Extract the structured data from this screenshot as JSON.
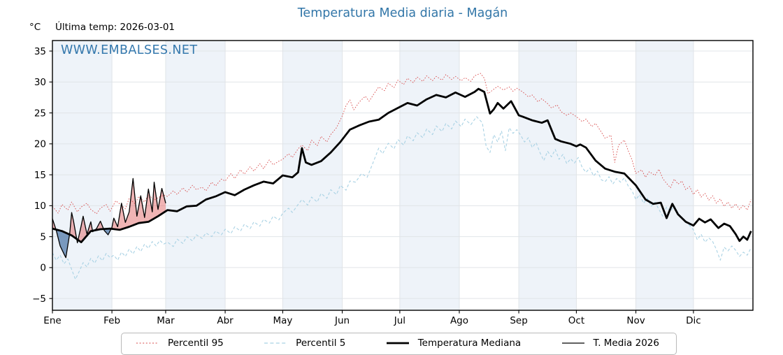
{
  "title": "Temperatura Media diaria - Magán",
  "y_axis_unit": "°C",
  "subtitle": "Última temp: 2026-03-01",
  "watermark": "WWW.EMBALSES.NET",
  "colors": {
    "title_blue": "#3276a8",
    "watermark_blue": "#3478ad",
    "percentile95_red": "#d84a4a",
    "percentile5_blue": "#a9d2e4",
    "median_black": "#000000",
    "band_tint": "#eef3f9",
    "grid_gray": "#e0e4e8"
  },
  "legend": {
    "items": [
      {
        "label": "Percentil 95",
        "color": "#d84a4a",
        "dash": "2 2.6",
        "width": 1
      },
      {
        "label": "Percentil 5",
        "color": "#a9d2e4",
        "dash": "5 3.4",
        "width": 1.2
      },
      {
        "label": "Temperatura Mediana",
        "color": "#000000",
        "dash": "",
        "width": 2.8
      },
      {
        "label": "T. Media 2026",
        "color": "#000000",
        "dash": "",
        "width": 1.2
      }
    ]
  },
  "chart_data": {
    "type": "line",
    "title": "Temperatura Media diaria - Magán",
    "xlabel": "",
    "ylabel": "°C",
    "xlim": [
      0,
      365
    ],
    "ylim": [
      -6.9,
      36.7
    ],
    "yticks": [
      -5,
      0,
      5,
      10,
      15,
      20,
      25,
      30,
      35
    ],
    "x_tick_labels": [
      "Ene",
      "Feb",
      "Mar",
      "Abr",
      "May",
      "Jun",
      "Jul",
      "Ago",
      "Sep",
      "Oct",
      "Nov",
      "Dic"
    ],
    "month_start_days": [
      0,
      31,
      59,
      90,
      120,
      151,
      181,
      212,
      243,
      273,
      304,
      334
    ],
    "grid": true,
    "band_color": "#eef3f9",
    "grid_color": "#e0e4e8",
    "legend_position": "bottom",
    "fill": {
      "upper": "T. Media 2026",
      "lower": "Temperatura Mediana",
      "above_color": "rgba(226,106,106,0.5)",
      "below_color": "rgba(82,123,170,0.75)"
    },
    "series": [
      {
        "name": "Percentil 95",
        "color": "#d84a4a",
        "dash": "1.6 2.2",
        "width": 0.9,
        "x": [
          0,
          3,
          5,
          8,
          10,
          13,
          15,
          18,
          20,
          23,
          25,
          28,
          30,
          33,
          35,
          38,
          40,
          43,
          45,
          48,
          50,
          53,
          55,
          58,
          60,
          63,
          65,
          68,
          70,
          73,
          75,
          78,
          80,
          83,
          85,
          88,
          90,
          93,
          95,
          98,
          100,
          103,
          105,
          108,
          110,
          113,
          115,
          118,
          120,
          123,
          125,
          128,
          130,
          133,
          135,
          138,
          140,
          143,
          145,
          148,
          151,
          153,
          155,
          157,
          160,
          163,
          165,
          168,
          170,
          173,
          175,
          178,
          180,
          183,
          185,
          188,
          190,
          193,
          195,
          198,
          200,
          203,
          205,
          208,
          210,
          213,
          215,
          218,
          220,
          223,
          225,
          227,
          229,
          232,
          235,
          238,
          240,
          242,
          245,
          248,
          250,
          253,
          255,
          258,
          260,
          263,
          265,
          268,
          270,
          273,
          276,
          278,
          281,
          283,
          286,
          288,
          291,
          293,
          295,
          298,
          300,
          302,
          304,
          307,
          309,
          311,
          314,
          316,
          318,
          320,
          322,
          324,
          326,
          328,
          330,
          332,
          334,
          336,
          338,
          340,
          342,
          344,
          346,
          348,
          350,
          352,
          354,
          356,
          358,
          360,
          362,
          364
        ],
        "y": [
          9.9,
          8.8,
          10.2,
          9.3,
          10.6,
          9.0,
          9.8,
          10.4,
          9.4,
          8.7,
          9.6,
          10.2,
          9.1,
          10.8,
          10.3,
          9.5,
          11.2,
          10.3,
          11.5,
          10.6,
          11.8,
          10.9,
          11.3,
          11.7,
          11.5,
          12.4,
          11.8,
          12.9,
          12.2,
          13.3,
          12.6,
          13.0,
          12.4,
          13.8,
          13.2,
          14.3,
          14.0,
          15.2,
          14.4,
          15.8,
          15.1,
          16.3,
          15.6,
          16.8,
          16.0,
          17.4,
          16.6,
          17.2,
          17.5,
          18.4,
          17.8,
          19.2,
          19.8,
          18.9,
          20.6,
          19.7,
          21.2,
          20.3,
          21.5,
          22.6,
          24.5,
          26.2,
          27.1,
          25.5,
          26.8,
          27.7,
          26.9,
          28.3,
          29.2,
          28.6,
          29.8,
          29.1,
          30.3,
          29.6,
          30.6,
          29.9,
          30.8,
          30.1,
          31.0,
          30.2,
          30.9,
          30.3,
          31.2,
          30.4,
          30.9,
          30.2,
          30.7,
          30.1,
          31.0,
          31.4,
          30.6,
          28.1,
          28.6,
          29.3,
          28.7,
          29.2,
          28.5,
          29.0,
          28.4,
          27.6,
          27.9,
          26.8,
          27.3,
          26.5,
          25.8,
          26.3,
          25.2,
          24.6,
          25.0,
          24.4,
          23.6,
          24.0,
          22.8,
          23.3,
          21.9,
          20.9,
          21.4,
          17.0,
          19.8,
          20.6,
          18.9,
          17.4,
          15.2,
          15.8,
          14.6,
          15.5,
          14.9,
          15.9,
          14.4,
          13.6,
          12.9,
          14.3,
          13.5,
          14.0,
          12.6,
          13.1,
          11.8,
          12.6,
          11.4,
          12.0,
          10.9,
          11.6,
          10.4,
          11.1,
          9.9,
          10.6,
          9.6,
          10.3,
          9.4,
          10.1,
          9.3,
          11.0
        ]
      },
      {
        "name": "Percentil 5",
        "color": "#a9d2e4",
        "dash": "4 3",
        "width": 1.1,
        "x": [
          0,
          2,
          4,
          6,
          8,
          10,
          12,
          14,
          16,
          18,
          20,
          22,
          24,
          26,
          28,
          30,
          32,
          34,
          36,
          38,
          40,
          42,
          44,
          46,
          48,
          50,
          52,
          54,
          56,
          58,
          60,
          63,
          65,
          68,
          70,
          73,
          75,
          78,
          80,
          83,
          85,
          88,
          90,
          93,
          95,
          98,
          100,
          103,
          105,
          108,
          110,
          113,
          115,
          118,
          120,
          123,
          125,
          128,
          130,
          133,
          135,
          138,
          140,
          143,
          145,
          148,
          150,
          153,
          155,
          158,
          161,
          164,
          167,
          170,
          172,
          175,
          178,
          180,
          183,
          185,
          188,
          190,
          193,
          195,
          198,
          200,
          203,
          205,
          208,
          210,
          213,
          215,
          218,
          221,
          224,
          226,
          228,
          230,
          232,
          234,
          236,
          238,
          240,
          242,
          244,
          246,
          248,
          250,
          252,
          254,
          256,
          258,
          260,
          262,
          264,
          266,
          268,
          270,
          272,
          274,
          276,
          278,
          280,
          282,
          284,
          286,
          288,
          290,
          292,
          294,
          296,
          298,
          300,
          302,
          304,
          306,
          308,
          310,
          312,
          314,
          316,
          318,
          320,
          322,
          324,
          326,
          328,
          330,
          332,
          334,
          336,
          338,
          340,
          342,
          344,
          346,
          348,
          350,
          352,
          354,
          356,
          358,
          360,
          362,
          364
        ],
        "y": [
          2.4,
          1.2,
          2.0,
          0.6,
          1.4,
          -0.3,
          -1.9,
          -0.6,
          0.8,
          0.1,
          1.5,
          0.7,
          1.9,
          1.1,
          2.3,
          1.6,
          2.0,
          1.2,
          2.5,
          1.8,
          3.0,
          2.2,
          3.4,
          2.6,
          3.8,
          3.1,
          4.2,
          3.5,
          4.4,
          3.8,
          4.1,
          3.4,
          4.6,
          3.9,
          5.0,
          4.3,
          5.3,
          4.7,
          5.6,
          5.0,
          5.9,
          5.3,
          6.2,
          5.5,
          6.6,
          5.9,
          7.0,
          6.3,
          7.4,
          6.7,
          7.8,
          7.2,
          8.3,
          7.7,
          8.8,
          9.6,
          8.9,
          10.2,
          11.0,
          10.1,
          11.4,
          10.6,
          12.0,
          11.2,
          12.6,
          11.8,
          13.3,
          12.5,
          14.0,
          13.8,
          15.2,
          14.6,
          16.9,
          19.3,
          18.4,
          20.1,
          19.2,
          20.7,
          19.8,
          21.3,
          20.5,
          21.8,
          21.0,
          22.4,
          21.5,
          22.9,
          22.0,
          23.3,
          22.4,
          23.7,
          22.8,
          24.0,
          23.1,
          24.4,
          23.4,
          19.6,
          18.6,
          21.5,
          20.3,
          22.1,
          18.9,
          22.6,
          21.7,
          22.3,
          21.4,
          20.3,
          21.0,
          19.4,
          20.2,
          18.6,
          17.3,
          18.8,
          17.9,
          19.1,
          17.5,
          18.3,
          16.8,
          17.6,
          16.9,
          17.8,
          16.2,
          15.4,
          16.1,
          14.8,
          15.6,
          14.2,
          13.9,
          14.7,
          13.5,
          14.4,
          13.8,
          14.5,
          13.2,
          12.4,
          11.0,
          11.8,
          10.4,
          11.2,
          9.9,
          10.6,
          9.4,
          8.3,
          9.8,
          9.1,
          10.0,
          8.8,
          8.1,
          7.4,
          6.8,
          6.1,
          4.5,
          5.4,
          4.1,
          4.8,
          4.2,
          2.9,
          1.2,
          3.3,
          2.7,
          3.5,
          2.8,
          1.8,
          2.5,
          2.0,
          3.2
        ]
      },
      {
        "name": "T. Media 2026",
        "color": "#000000",
        "dash": "",
        "width": 1.3,
        "x": [
          0,
          2,
          4,
          6,
          7,
          9,
          10,
          11,
          13,
          15,
          16,
          18,
          20,
          21,
          23,
          25,
          27,
          29,
          31,
          32,
          34,
          36,
          38,
          40,
          42,
          44,
          46,
          48,
          50,
          52,
          53,
          55,
          57,
          59
        ],
        "y": [
          7.9,
          6.0,
          3.5,
          2.2,
          1.6,
          5.5,
          8.9,
          7.5,
          4.0,
          6.8,
          8.3,
          5.4,
          7.4,
          5.8,
          6.3,
          7.5,
          6.0,
          5.3,
          6.5,
          8.0,
          6.6,
          10.4,
          7.3,
          9.0,
          14.4,
          8.3,
          11.6,
          8.1,
          12.7,
          9.0,
          13.8,
          9.4,
          12.8,
          10.4
        ]
      },
      {
        "name": "Temperatura Mediana",
        "color": "#000000",
        "dash": "",
        "width": 2.8,
        "x": [
          0,
          5,
          10,
          15,
          20,
          25,
          30,
          35,
          40,
          45,
          50,
          55,
          60,
          65,
          70,
          75,
          80,
          85,
          90,
          95,
          100,
          105,
          110,
          115,
          120,
          125,
          128,
          130,
          132,
          135,
          140,
          145,
          150,
          155,
          160,
          165,
          170,
          175,
          180,
          185,
          190,
          195,
          200,
          205,
          210,
          215,
          220,
          222,
          225,
          228,
          230,
          232,
          235,
          239,
          243,
          245,
          250,
          255,
          258,
          262,
          265,
          270,
          273,
          275,
          278,
          283,
          288,
          293,
          298,
          304,
          309,
          313,
          317,
          320,
          323,
          326,
          330,
          334,
          337,
          340,
          343,
          347,
          350,
          353,
          356,
          358,
          360,
          362,
          364
        ],
        "y": [
          6.3,
          5.9,
          5.2,
          4.1,
          5.9,
          6.2,
          6.3,
          6.1,
          6.6,
          7.2,
          7.4,
          8.3,
          9.3,
          9.1,
          9.9,
          10.0,
          11.0,
          11.5,
          12.2,
          11.7,
          12.6,
          13.3,
          13.9,
          13.6,
          14.9,
          14.6,
          15.4,
          19.3,
          17.0,
          16.6,
          17.2,
          18.6,
          20.3,
          22.3,
          23.0,
          23.6,
          23.9,
          25.0,
          25.8,
          26.6,
          26.2,
          27.2,
          27.9,
          27.5,
          28.3,
          27.6,
          28.4,
          28.9,
          28.4,
          24.9,
          25.6,
          26.6,
          25.7,
          26.9,
          24.6,
          24.4,
          23.8,
          23.4,
          23.8,
          20.8,
          20.4,
          20.0,
          19.6,
          19.9,
          19.4,
          17.3,
          16.0,
          15.5,
          15.2,
          13.3,
          11.0,
          10.3,
          10.5,
          8.0,
          10.3,
          8.6,
          7.4,
          6.8,
          7.9,
          7.3,
          7.8,
          6.4,
          7.1,
          6.7,
          5.4,
          4.3,
          5.0,
          4.5,
          5.9
        ]
      }
    ]
  }
}
